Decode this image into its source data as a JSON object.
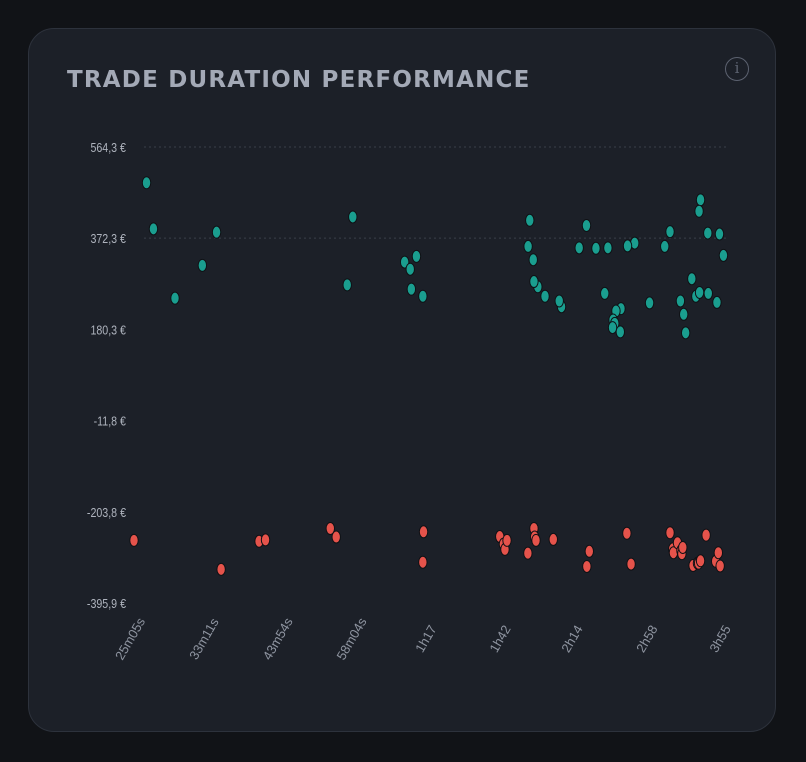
{
  "card": {
    "title": "TRADE DURATION PERFORMANCE",
    "info_icon": "info-icon"
  },
  "colors": {
    "profit": "#1a9e8f",
    "loss": "#e5534b",
    "gridline": "#3a3f4a"
  },
  "chart_data": {
    "type": "scatter",
    "title": "TRADE DURATION PERFORMANCE",
    "xlabel": "",
    "ylabel": "",
    "x_unit": "minutes",
    "xlim": [
      25.08,
      235
    ],
    "ylim": [
      -395.9,
      564.3
    ],
    "y_ticks": [
      564.3,
      372.3,
      180.3,
      -11.8,
      -203.8,
      -395.9
    ],
    "y_tick_labels": [
      "564,3 €",
      "372,3 €",
      "180,3 €",
      "-11,8 €",
      "-203,8 €",
      "-395,9 €"
    ],
    "x_ticks": [
      25.08,
      33.18,
      43.9,
      58.07,
      77,
      102,
      134,
      178,
      235
    ],
    "x_tick_labels": [
      "25m05s",
      "33m11s",
      "43m54s",
      "58m04s",
      "1h17",
      "1h42",
      "2h14",
      "2h58",
      "3h55"
    ],
    "gridlines": [
      564.3,
      372.3
    ],
    "series": [
      {
        "color": "#1a9e8f",
        "points": [
          [
            26.3,
            489
          ],
          [
            27.0,
            392
          ],
          [
            29.3,
            246
          ],
          [
            32.5,
            315
          ],
          [
            34.3,
            385
          ],
          [
            57.5,
            417
          ],
          [
            56.3,
            274
          ],
          [
            70.0,
            322
          ],
          [
            71.5,
            307
          ],
          [
            71.8,
            265
          ],
          [
            75.0,
            250
          ],
          [
            73.2,
            334
          ],
          [
            111.8,
            355
          ],
          [
            112.5,
            410
          ],
          [
            114.0,
            327
          ],
          [
            116.0,
            270
          ],
          [
            114.3,
            281
          ],
          [
            119.2,
            250
          ],
          [
            126.9,
            228
          ],
          [
            125.8,
            240
          ],
          [
            135.7,
            352
          ],
          [
            139.5,
            399
          ],
          [
            144.6,
            351
          ],
          [
            151.3,
            352
          ],
          [
            159.0,
            224
          ],
          [
            167.5,
            362
          ],
          [
            163.0,
            356
          ],
          [
            156.0,
            219
          ],
          [
            154.3,
            200
          ],
          [
            155.3,
            193
          ],
          [
            149.5,
            256
          ],
          [
            154.0,
            184
          ],
          [
            158.6,
            175
          ],
          [
            177.2,
            236
          ],
          [
            187.7,
            355
          ],
          [
            191.5,
            386
          ],
          [
            199.2,
            240
          ],
          [
            203.2,
            173
          ],
          [
            201.7,
            212
          ],
          [
            208.0,
            287
          ],
          [
            211.2,
            250
          ],
          [
            215.0,
            453
          ],
          [
            213.8,
            429
          ],
          [
            214.2,
            258
          ],
          [
            221.0,
            383
          ],
          [
            221.4,
            256
          ],
          [
            228.8,
            237
          ],
          [
            231.0,
            381
          ],
          [
            234.5,
            336
          ]
        ]
      },
      {
        "color": "#e5534b",
        "points": [
          [
            25.08,
            -264
          ],
          [
            34.9,
            -325
          ],
          [
            40.3,
            -266
          ],
          [
            41.3,
            -263
          ],
          [
            52.8,
            -239
          ],
          [
            54.0,
            -257
          ],
          [
            75.2,
            -246
          ],
          [
            75.0,
            -310
          ],
          [
            100.4,
            -256
          ],
          [
            101.8,
            -272
          ],
          [
            102.4,
            -283
          ],
          [
            103.2,
            -264
          ],
          [
            111.7,
            -291
          ],
          [
            114.3,
            -239
          ],
          [
            114.6,
            -257
          ],
          [
            115.2,
            -264
          ],
          [
            123.0,
            -262
          ],
          [
            139.7,
            -319
          ],
          [
            141.0,
            -287
          ],
          [
            162.6,
            -249
          ],
          [
            165.2,
            -314
          ],
          [
            191.5,
            -248
          ],
          [
            193.5,
            -282
          ],
          [
            194.0,
            -290
          ],
          [
            197.0,
            -269
          ],
          [
            199.6,
            -286
          ],
          [
            200.3,
            -292
          ],
          [
            201.0,
            -279
          ],
          [
            209.0,
            -317
          ],
          [
            212.5,
            -312
          ],
          [
            213.4,
            -312
          ],
          [
            215.0,
            -307
          ],
          [
            219.6,
            -253
          ],
          [
            227.7,
            -308
          ],
          [
            230.0,
            -290
          ],
          [
            231.6,
            -318
          ]
        ]
      }
    ]
  }
}
